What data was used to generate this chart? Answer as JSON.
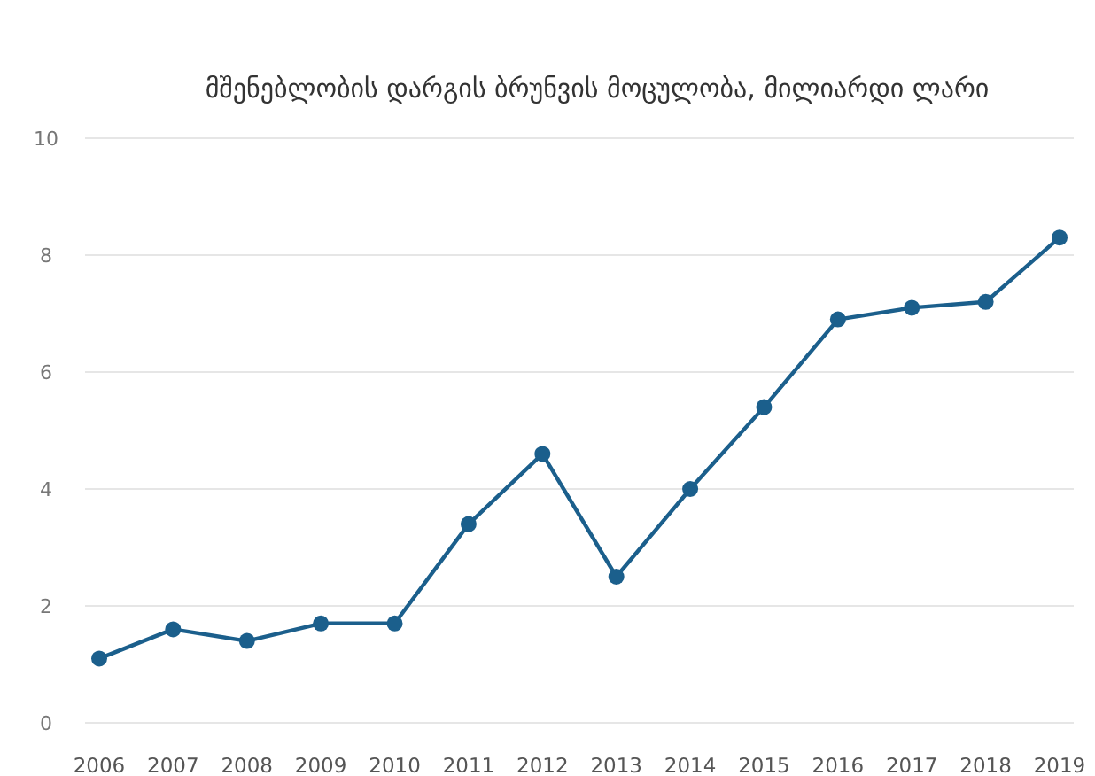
{
  "chart_data": {
    "type": "line",
    "title": "მშენებლობის დარგის ბრუნვის მოცულობა, მილიარდი ლარი",
    "categories": [
      "2006",
      "2007",
      "2008",
      "2009",
      "2010",
      "2011",
      "2012",
      "2013",
      "2014",
      "2015",
      "2016",
      "2017",
      "2018",
      "2019"
    ],
    "series": [
      {
        "color": "#1b5f8c",
        "values": [
          1.1,
          1.6,
          1.4,
          1.7,
          1.7,
          3.4,
          4.6,
          2.5,
          4.0,
          5.4,
          6.9,
          7.1,
          7.2,
          8.3
        ]
      }
    ],
    "ylim": [
      0,
      10
    ],
    "yticks": [
      0,
      2,
      4,
      6,
      8,
      10
    ],
    "grid": "y",
    "marker": "circle",
    "line_style": "solid"
  }
}
